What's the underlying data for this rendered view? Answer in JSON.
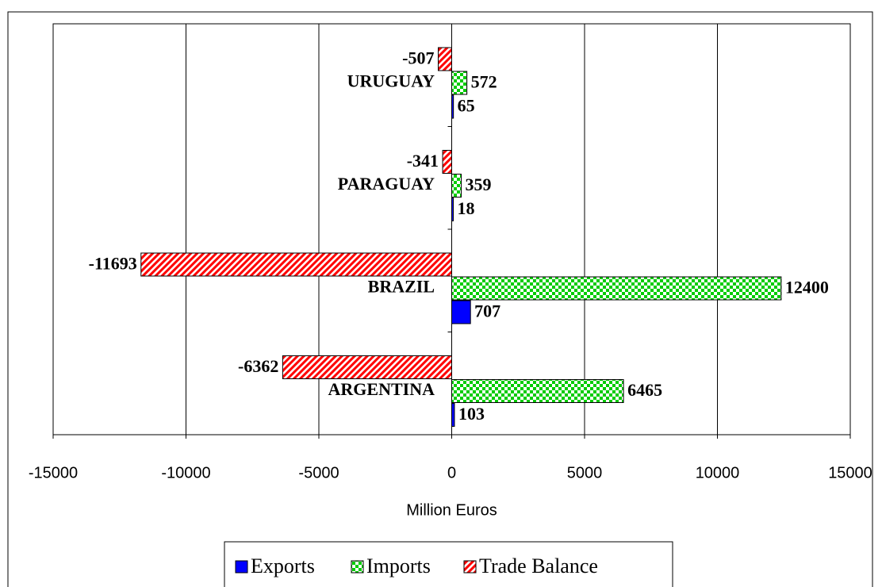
{
  "chart_data": {
    "type": "hbar",
    "categories": [
      "ARGENTINA",
      "BRAZIL",
      "PARAGUAY",
      "URUGUAY"
    ],
    "series": [
      {
        "name": "Exports",
        "color": "#0000ff",
        "values": [
          103,
          707,
          18,
          65
        ]
      },
      {
        "name": "Imports",
        "color": "#00cc00",
        "values": [
          6465,
          12400,
          359,
          572
        ]
      },
      {
        "name": "Trade Balance",
        "color": "#ff0000",
        "values": [
          -6362,
          -11693,
          -341,
          -507
        ]
      }
    ],
    "xlim": [
      -15000,
      15000
    ],
    "xticks": [
      -15000,
      -10000,
      -5000,
      0,
      5000,
      10000,
      15000
    ],
    "xlabel": "Million Euros",
    "grid": true,
    "legend": "bottom"
  }
}
